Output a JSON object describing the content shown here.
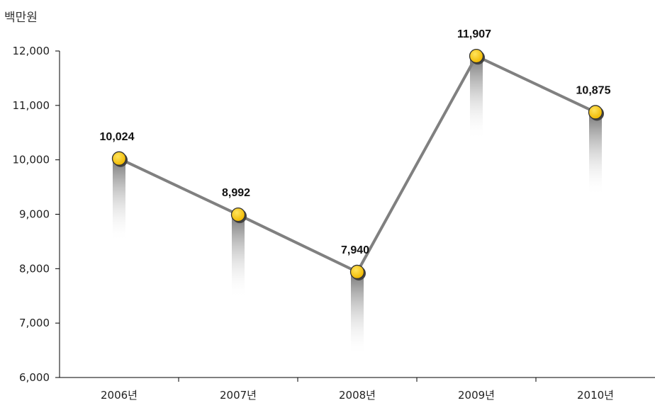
{
  "chart_data": {
    "type": "line",
    "title": "",
    "unit_label": "백만원",
    "xlabel": "",
    "ylabel": "",
    "categories": [
      "2006년",
      "2007년",
      "2008년",
      "2009년",
      "2010년"
    ],
    "series": [
      {
        "values": [
          10024,
          8992,
          7940,
          11907,
          10875
        ],
        "labels": [
          "10,024",
          "8,992",
          "7,940",
          "11,907",
          "10,875"
        ]
      }
    ],
    "ylim": [
      6000,
      12000
    ],
    "yticks": [
      6000,
      7000,
      8000,
      9000,
      10000,
      11000,
      12000
    ],
    "ytick_labels": [
      "6,000",
      "7,000",
      "8,000",
      "9,000",
      "10,000",
      "11,000",
      "12,000"
    ],
    "grid": false,
    "colors": {
      "line": "#808080",
      "marker_fill": "#f5c400",
      "marker_outline": "#333333",
      "axis": "#000000"
    }
  }
}
